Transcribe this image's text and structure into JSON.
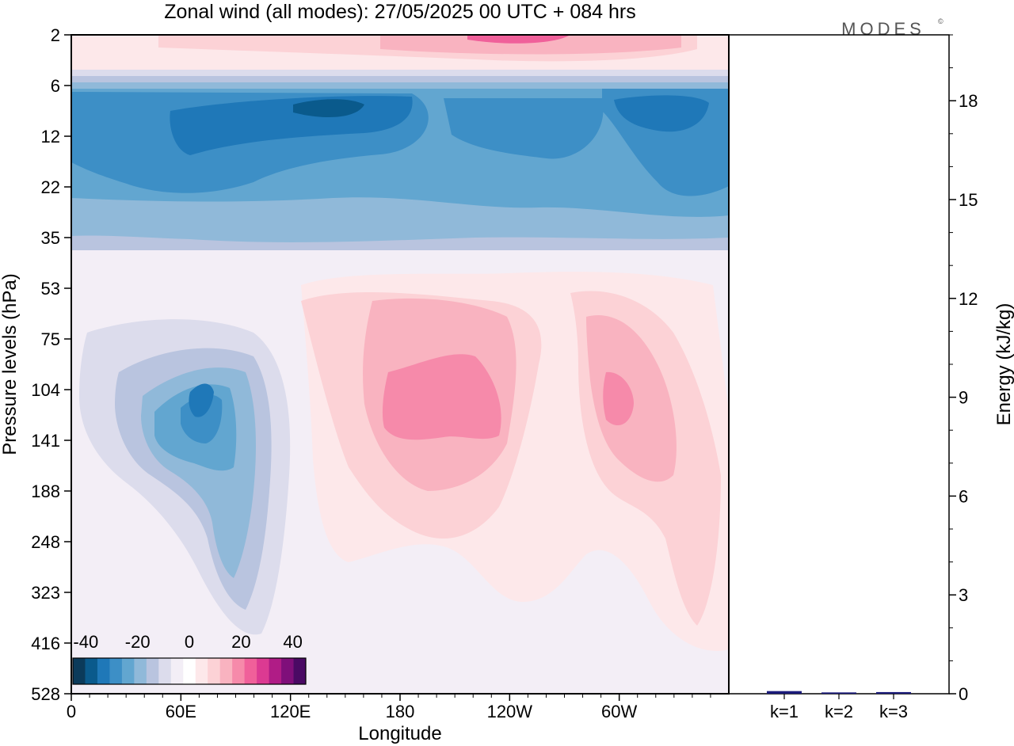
{
  "chart_data": {
    "type": "heatmap",
    "title": "Zonal wind (all modes):  27/05/2025  00 UTC  + 084 hrs",
    "logo": "MODES",
    "logo_mark": "©",
    "xlabel": "Longitude",
    "ylabel": "Pressure levels (hPa)",
    "y2label": "Energy (kJ/kg)",
    "x_ticks": [
      "0",
      "60E",
      "120E",
      "180",
      "120W",
      "60W"
    ],
    "x_tick_values": [
      0,
      60,
      120,
      180,
      240,
      300
    ],
    "xlim": [
      0,
      360
    ],
    "y_ticks": [
      "2",
      "6",
      "12",
      "22",
      "35",
      "53",
      "75",
      "104",
      "141",
      "188",
      "248",
      "323",
      "416",
      "528"
    ],
    "y_scale": "pressure levels (inverted, non-linear)",
    "y2_ticks": [
      "0",
      "3",
      "6",
      "9",
      "12",
      "15",
      "18"
    ],
    "y2lim": [
      0,
      20
    ],
    "colorbar": {
      "tick_labels": [
        "-40",
        "-20",
        "0",
        "20",
        "40"
      ],
      "range": [
        -45,
        45
      ],
      "step": 5,
      "colors": [
        "#0b3a5a",
        "#0a5a8c",
        "#1f78b8",
        "#3d8fc6",
        "#62a6d0",
        "#90b9d9",
        "#b9c4df",
        "#dcdcec",
        "#f3eef6",
        "#ffffff",
        "#fde8ea",
        "#fcd2d6",
        "#f9b3c0",
        "#f68aaa",
        "#f0609a",
        "#dc3a92",
        "#b01c86",
        "#7f0f7a",
        "#4a0a64"
      ]
    },
    "energy_bars": {
      "categories": [
        "k=1",
        "k=2",
        "k=3"
      ],
      "values": [
        0.08,
        0.04,
        0.05
      ],
      "color": "#1a1a7a"
    },
    "field_regions_note": "schematic contour field",
    "bands": [
      {
        "level_top": 2,
        "level_bottom": 6,
        "wind": 12
      },
      {
        "level_top": 6,
        "level_bottom": 35,
        "wind": -30
      },
      {
        "level_top": 35,
        "level_bottom": 53,
        "wind": -5
      },
      {
        "level_top": 53,
        "level_bottom": 528,
        "wind": 3
      }
    ]
  }
}
